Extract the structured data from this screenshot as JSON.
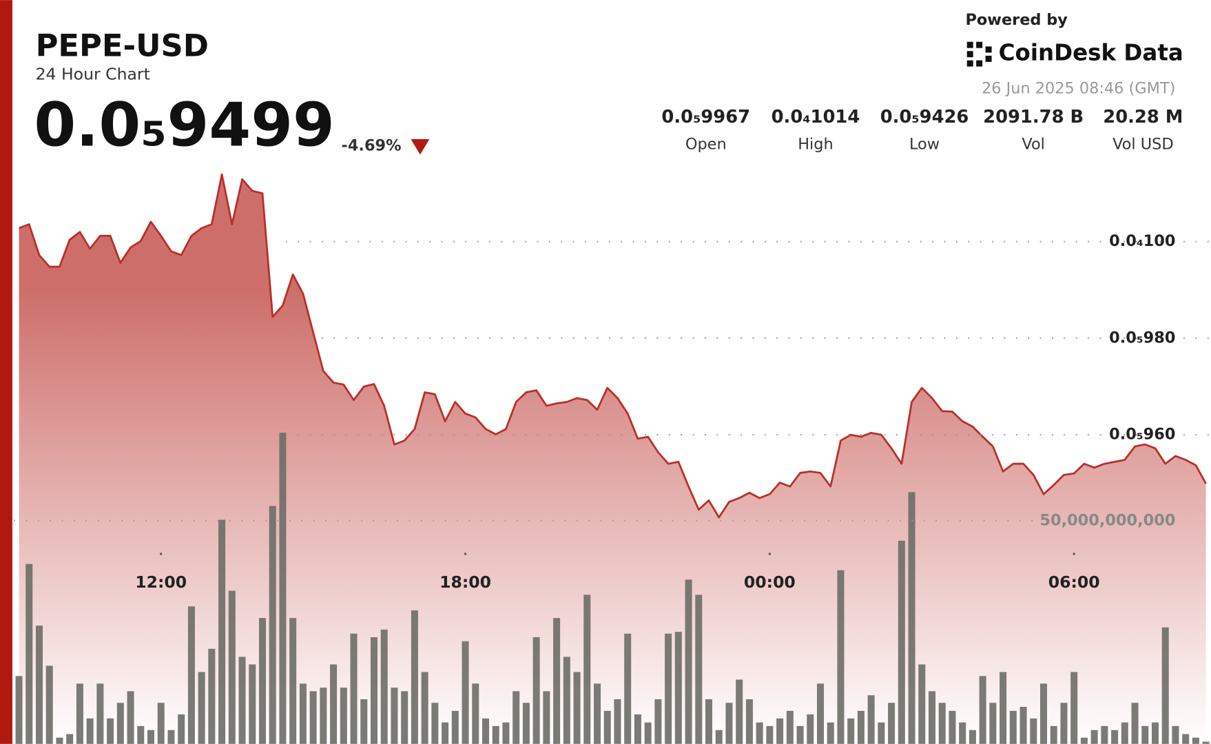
{
  "header": {
    "title": "PEPE-USD",
    "subtitle": "24 Hour Chart",
    "price": "0.0₅9499",
    "change": "-4.69%",
    "powered_by": "Powered by",
    "brand": "CoinDesk Data",
    "timestamp": "26 Jun 2025 08:46 (GMT)"
  },
  "stats": [
    {
      "value": "0.0₅9967",
      "label": "Open"
    },
    {
      "value": "0.0₄1014",
      "label": "High"
    },
    {
      "value": "0.0₅9426",
      "label": "Low"
    },
    {
      "value": "2091.78 B",
      "label": "Vol"
    },
    {
      "value": "20.28 M",
      "label": "Vol USD"
    }
  ],
  "chart_data": {
    "type": "line",
    "categories": [
      null,
      null,
      null,
      null,
      null,
      null,
      null,
      null,
      null,
      null,
      null,
      null,
      null,
      null,
      "12:00",
      null,
      null,
      null,
      null,
      null,
      null,
      null,
      null,
      null,
      null,
      null,
      null,
      null,
      null,
      null,
      null,
      null,
      null,
      null,
      null,
      null,
      null,
      null,
      null,
      null,
      null,
      null,
      null,
      null,
      "18:00",
      null,
      null,
      null,
      null,
      null,
      null,
      null,
      null,
      null,
      null,
      null,
      null,
      null,
      null,
      null,
      null,
      null,
      null,
      null,
      null,
      null,
      null,
      null,
      null,
      null,
      null,
      null,
      null,
      null,
      "00:00",
      null,
      null,
      null,
      null,
      null,
      null,
      null,
      null,
      null,
      null,
      null,
      null,
      null,
      null,
      null,
      null,
      null,
      null,
      null,
      null,
      null,
      null,
      null,
      null,
      null,
      null,
      null,
      null,
      null,
      "06:00",
      null,
      null,
      null,
      null,
      null,
      null,
      null,
      null,
      null,
      null,
      null,
      null,
      null
    ],
    "series": [
      {
        "type": "area",
        "color": "#b8302a",
        "values": [
          1.0028e-05,
          1.0036e-05,
          9.972e-06,
          9.948e-06,
          9.948e-06,
          1.0004e-05,
          1.002e-05,
          9.985e-06,
          1.0012e-05,
          1.0012e-05,
          9.956e-06,
          9.988e-06,
          1.0001e-05,
          1.0041e-05,
          1.0012e-05,
          9.98e-06,
          9.972e-06,
          1.0012e-05,
          1.0028e-05,
          1.0036e-05,
          1.0139e-05,
          1.0036e-05,
          1.0129e-05,
          1.0105e-05,
          1.01e-05,
          9.844e-06,
          9.868e-06,
          9.932e-06,
          9.892e-06,
          9.812e-06,
          9.732e-06,
          9.708e-06,
          9.704e-06,
          9.672e-06,
          9.7e-06,
          9.705e-06,
          9.66e-06,
          9.58e-06,
          9.588e-06,
          9.612e-06,
          9.688e-06,
          9.684e-06,
          9.628e-06,
          9.668e-06,
          9.644e-06,
          9.636e-06,
          9.612e-06,
          9.601e-06,
          9.612e-06,
          9.668e-06,
          9.688e-06,
          9.692e-06,
          9.66e-06,
          9.665e-06,
          9.668e-06,
          9.676e-06,
          9.672e-06,
          9.652e-06,
          9.697e-06,
          9.676e-06,
          9.644e-06,
          9.592e-06,
          9.596e-06,
          9.564e-06,
          9.54e-06,
          9.544e-06,
          9.493e-06,
          9.445e-06,
          9.464e-06,
          9.429e-06,
          9.461e-06,
          9.469e-06,
          9.48e-06,
          9.469e-06,
          9.477e-06,
          9.501e-06,
          9.493e-06,
          9.521e-06,
          9.524e-06,
          9.521e-06,
          9.493e-06,
          9.588e-06,
          9.6e-06,
          9.596e-06,
          9.604e-06,
          9.6e-06,
          9.572e-06,
          9.54e-06,
          9.668e-06,
          9.697e-06,
          9.676e-06,
          9.649e-06,
          9.648e-06,
          9.628e-06,
          9.617e-06,
          9.596e-06,
          9.576e-06,
          9.524e-06,
          9.54e-06,
          9.54e-06,
          9.517e-06,
          9.477e-06,
          9.496e-06,
          9.517e-06,
          9.52e-06,
          9.54e-06,
          9.532e-06,
          9.54e-06,
          9.544e-06,
          9.548e-06,
          9.576e-06,
          9.58e-06,
          9.572e-06,
          9.54e-06,
          9.556e-06,
          9.548e-06,
          9.537e-06,
          9.499e-06
        ]
      },
      {
        "type": "bar",
        "axis": "y2",
        "color": "#6d6d66",
        "values": [
          15200000000,
          40300000000,
          26500000000,
          17500000000,
          1400000000,
          2200000000,
          13500000000,
          5700000000,
          13500000000,
          5700000000,
          9200000000,
          11800000000,
          4000000000,
          3100000000,
          9200000000,
          3100000000,
          6600000000,
          30800000000,
          16100000000,
          21300000000,
          50200000000,
          34300000000,
          19500000000,
          17800000000,
          28200000000,
          53300000000,
          69700000000,
          28200000000,
          13500000000,
          11800000000,
          12600000000,
          17800000000,
          12600000000,
          24700000000,
          10000000000,
          23900000000,
          25600000000,
          12600000000,
          11800000000,
          29900000000,
          16100000000,
          9200000000,
          4800000000,
          7400000000,
          23000000000,
          13500000000,
          5700000000,
          4000000000,
          4800000000,
          11800000000,
          9200000000,
          23900000000,
          11800000000,
          28200000000,
          19500000000,
          16100000000,
          33400000000,
          13500000000,
          7400000000,
          10000000000,
          24700000000,
          6600000000,
          4800000000,
          10000000000,
          24700000000,
          25100000000,
          36800000000,
          33400000000,
          10000000000,
          3100000000,
          9200000000,
          14400000000,
          10000000000,
          4800000000,
          4000000000,
          5700000000,
          7400000000,
          4000000000,
          6600000000,
          13500000000,
          4800000000,
          38900000000,
          5700000000,
          7400000000,
          10900000000,
          4800000000,
          9200000000,
          45500000000,
          56400000000,
          17800000000,
          11800000000,
          9200000000,
          7400000000,
          4800000000,
          3100000000,
          15200000000,
          9200000000,
          16100000000,
          7400000000,
          8300000000,
          5700000000,
          13500000000,
          4000000000,
          9200000000,
          16100000000,
          1400000000,
          3100000000,
          4000000000,
          3100000000,
          4800000000,
          9200000000,
          4000000000,
          4800000000,
          26100000000,
          4000000000,
          2200000000,
          1400000000,
          500000000
        ]
      }
    ],
    "ylim": [
      8.96e-06,
      1.05e-05
    ],
    "yticks": [
      {
        "value": 1e-05,
        "label": "0.0₄100"
      },
      {
        "value": 9.8e-06,
        "label": "0.0₅980"
      },
      {
        "value": 9.6e-06,
        "label": "0.0₅960"
      }
    ],
    "y2lim": [
      0,
      166600000000
    ],
    "y2ticks": [
      {
        "value": 50000000000,
        "label": "50,000,000,000"
      }
    ],
    "grid": true
  }
}
